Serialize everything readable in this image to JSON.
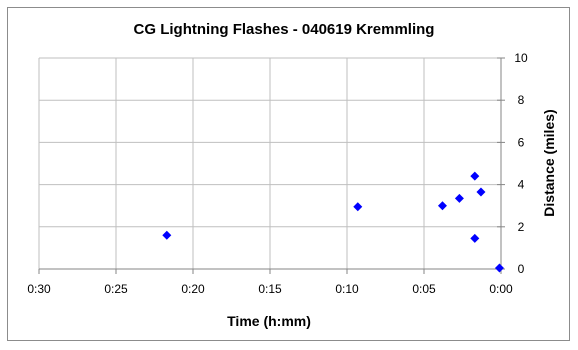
{
  "chart_data": {
    "type": "scatter",
    "title": "CG Lightning Flashes - 040619 Kremmling",
    "xlabel": "Time (h:mm)",
    "ylabel": "Distance (miles)",
    "x_unit": "minutes before 0:00",
    "x_reversed": true,
    "xlim": [
      0,
      30
    ],
    "ylim": [
      0,
      10
    ],
    "x_ticks": [
      {
        "value": 30,
        "label": "0:30"
      },
      {
        "value": 25,
        "label": "0:25"
      },
      {
        "value": 20,
        "label": "0:20"
      },
      {
        "value": 15,
        "label": "0:15"
      },
      {
        "value": 10,
        "label": "0:10"
      },
      {
        "value": 5,
        "label": "0:05"
      },
      {
        "value": 0,
        "label": "0:00"
      }
    ],
    "y_ticks": [
      0,
      2,
      4,
      6,
      8,
      10
    ],
    "grid": true,
    "marker_color": "#0000ff",
    "points": [
      {
        "x": 21.7,
        "y": 1.6
      },
      {
        "x": 9.3,
        "y": 2.95
      },
      {
        "x": 3.8,
        "y": 3.0
      },
      {
        "x": 2.7,
        "y": 3.35
      },
      {
        "x": 1.7,
        "y": 4.4
      },
      {
        "x": 1.3,
        "y": 3.65
      },
      {
        "x": 1.7,
        "y": 1.45
      },
      {
        "x": 0.1,
        "y": 0.05
      }
    ]
  }
}
